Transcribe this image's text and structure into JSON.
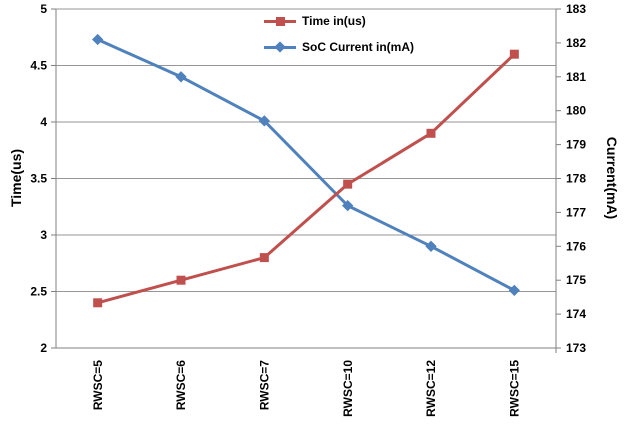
{
  "chart_data": {
    "type": "line",
    "title": "",
    "categories": [
      "RWSC=5",
      "RWSC=6",
      "RWSC=7",
      "RWSC=10",
      "RWSC=12",
      "RWSC=15"
    ],
    "series": [
      {
        "name": "Time in(us)",
        "axis": "left",
        "color": "#C0504D",
        "marker": "square",
        "values": [
          2.4,
          2.6,
          2.8,
          3.45,
          3.9,
          4.6
        ]
      },
      {
        "name": "SoC Current in(mA)",
        "axis": "right",
        "color": "#4F81BD",
        "marker": "diamond",
        "values": [
          182.1,
          181.0,
          179.7,
          177.2,
          176.0,
          174.7
        ]
      }
    ],
    "left_axis": {
      "label": "Time(us)",
      "min": 2,
      "max": 5,
      "tick_step": 0.5,
      "ticks": [
        "2",
        "2.5",
        "3",
        "3.5",
        "4",
        "4.5",
        "5"
      ]
    },
    "right_axis": {
      "label": "Current(mA)",
      "min": 173,
      "max": 183,
      "tick_step": 1,
      "ticks": [
        "173",
        "174",
        "175",
        "176",
        "177",
        "178",
        "179",
        "180",
        "181",
        "182",
        "183"
      ]
    },
    "x_axis": {
      "tick_labels_rotated": true
    },
    "legend_position": "top",
    "grid": "horizontal",
    "colors": {
      "grid": "#969696",
      "axis": "#808080",
      "text": "#000000",
      "background": "#ffffff"
    }
  },
  "legend": {
    "items": [
      {
        "label": "Time in(us)"
      },
      {
        "label": "SoC Current in(mA)"
      }
    ]
  }
}
